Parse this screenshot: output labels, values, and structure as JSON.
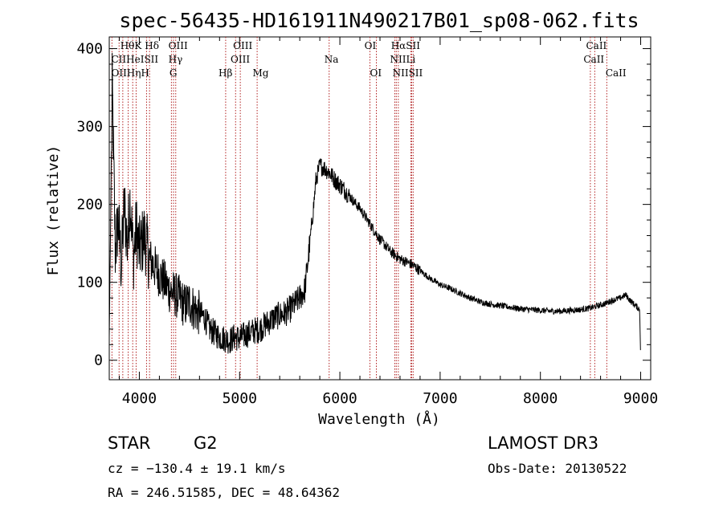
{
  "chart_data": {
    "type": "line",
    "title": "spec-56435-HD161911N490217B01_sp08-062.fits",
    "xlabel": "Wavelength (Å)",
    "ylabel": "Flux (relative)",
    "xlim": [
      3700,
      9100
    ],
    "ylim": [
      -25,
      415
    ],
    "xticks": [
      4000,
      5000,
      6000,
      7000,
      8000,
      9000
    ],
    "yticks": [
      0,
      100,
      200,
      300,
      400
    ],
    "series": [
      {
        "name": "flux",
        "x": [
          3700,
          3730,
          3760,
          3790,
          3820,
          3850,
          3880,
          3910,
          3940,
          3970,
          4000,
          4050,
          4100,
          4150,
          4200,
          4250,
          4300,
          4350,
          4400,
          4450,
          4500,
          4550,
          4600,
          4650,
          4700,
          4750,
          4800,
          4850,
          4900,
          4950,
          5000,
          5050,
          5100,
          5150,
          5200,
          5250,
          5300,
          5350,
          5400,
          5450,
          5500,
          5550,
          5600,
          5650,
          5700,
          5740,
          5760,
          5780,
          5800,
          5830,
          5860,
          5900,
          5930,
          5960,
          6000,
          6050,
          6100,
          6150,
          6200,
          6250,
          6300,
          6350,
          6400,
          6450,
          6500,
          6550,
          6600,
          6650,
          6700,
          6750,
          6800,
          6900,
          7000,
          7100,
          7200,
          7300,
          7400,
          7500,
          7600,
          7700,
          7800,
          7900,
          8000,
          8100,
          8200,
          8300,
          8400,
          8500,
          8550,
          8600,
          8650,
          8700,
          8750,
          8800,
          8850,
          8900,
          8950,
          8990,
          9000
        ],
        "y": [
          30,
          350,
          140,
          180,
          120,
          200,
          150,
          210,
          130,
          170,
          140,
          160,
          130,
          120,
          110,
          100,
          90,
          85,
          80,
          70,
          75,
          65,
          60,
          55,
          40,
          35,
          30,
          28,
          25,
          30,
          28,
          32,
          35,
          38,
          40,
          45,
          50,
          55,
          58,
          60,
          65,
          72,
          80,
          90,
          150,
          200,
          230,
          240,
          250,
          248,
          245,
          240,
          235,
          230,
          225,
          218,
          210,
          202,
          195,
          185,
          175,
          165,
          155,
          148,
          140,
          135,
          130,
          127,
          124,
          120,
          115,
          105,
          97,
          92,
          86,
          80,
          75,
          72,
          70,
          68,
          66,
          65,
          64,
          63,
          63,
          64,
          65,
          67,
          69,
          71,
          73,
          76,
          78,
          80,
          84,
          76,
          70,
          65,
          0
        ]
      }
    ],
    "lines": [
      {
        "name": "OII",
        "wave": 3727
      },
      {
        "name": "Hθ",
        "wave": 3798
      },
      {
        "name": "Hη",
        "wave": 3835
      },
      {
        "name": "HeI",
        "wave": 3889
      },
      {
        "name": "K",
        "wave": 3934
      },
      {
        "name": "H",
        "wave": 3968
      },
      {
        "name": "SII",
        "wave": 4072
      },
      {
        "name": "Hδ",
        "wave": 4102
      },
      {
        "name": "OIII",
        "wave": 4320
      },
      {
        "name": "Hγ",
        "wave": 4341
      },
      {
        "name": "G",
        "wave": 4363
      },
      {
        "name": "Hβ",
        "wave": 4861
      },
      {
        "name": "OIII",
        "wave": 4960
      },
      {
        "name": "OIII",
        "wave": 5007
      },
      {
        "name": "Mg",
        "wave": 5175
      },
      {
        "name": "Na",
        "wave": 5893
      },
      {
        "name": "OI",
        "wave": 6300
      },
      {
        "name": "OI",
        "wave": 6364
      },
      {
        "name": "NII",
        "wave": 6548
      },
      {
        "name": "Hα",
        "wave": 6563
      },
      {
        "name": "NII",
        "wave": 6583
      },
      {
        "name": "Li",
        "wave": 6708
      },
      {
        "name": "SII",
        "wave": 6716
      },
      {
        "name": "SII",
        "wave": 6731
      },
      {
        "name": "CaII",
        "wave": 8498
      },
      {
        "name": "CaII",
        "wave": 8542
      },
      {
        "name": "CaII",
        "wave": 8662
      }
    ],
    "line_label_texts": [
      {
        "text": "HθK",
        "wave": 3810,
        "row": 1
      },
      {
        "text": "CIIHeISII",
        "wave": 3720,
        "row": 2
      },
      {
        "text": "OIIHηH",
        "wave": 3720,
        "row": 3
      },
      {
        "text": "Hδ",
        "wave": 4055,
        "row": 1
      },
      {
        "text": "OIII",
        "wave": 4290,
        "row": 1
      },
      {
        "text": "Hγ",
        "wave": 4290,
        "row": 2
      },
      {
        "text": "G",
        "wave": 4300,
        "row": 3
      },
      {
        "text": "Hβ",
        "wave": 4790,
        "row": 3
      },
      {
        "text": "OIII",
        "wave": 4935,
        "row": 1
      },
      {
        "text": "OIII",
        "wave": 4910,
        "row": 2
      },
      {
        "text": "Mg",
        "wave": 5130,
        "row": 3
      },
      {
        "text": "Na",
        "wave": 5845,
        "row": 2
      },
      {
        "text": "OI",
        "wave": 6245,
        "row": 1
      },
      {
        "text": "OI",
        "wave": 6300,
        "row": 3
      },
      {
        "text": "HαSII",
        "wave": 6510,
        "row": 1
      },
      {
        "text": "NIILi",
        "wave": 6500,
        "row": 2
      },
      {
        "text": "NIISII",
        "wave": 6525,
        "row": 3
      },
      {
        "text": "CaII",
        "wave": 8455,
        "row": 1
      },
      {
        "text": "CaII",
        "wave": 8430,
        "row": 2
      },
      {
        "text": "CaII",
        "wave": 8650,
        "row": 3
      }
    ]
  },
  "info": {
    "object_class": "STAR",
    "subclass": "G2",
    "survey": "LAMOST DR3",
    "cz": "cz = −130.4 ± 19.1 km/s",
    "obs_date": "Obs-Date: 20130522",
    "coords": "RA = 246.51585, DEC =  48.64362"
  }
}
